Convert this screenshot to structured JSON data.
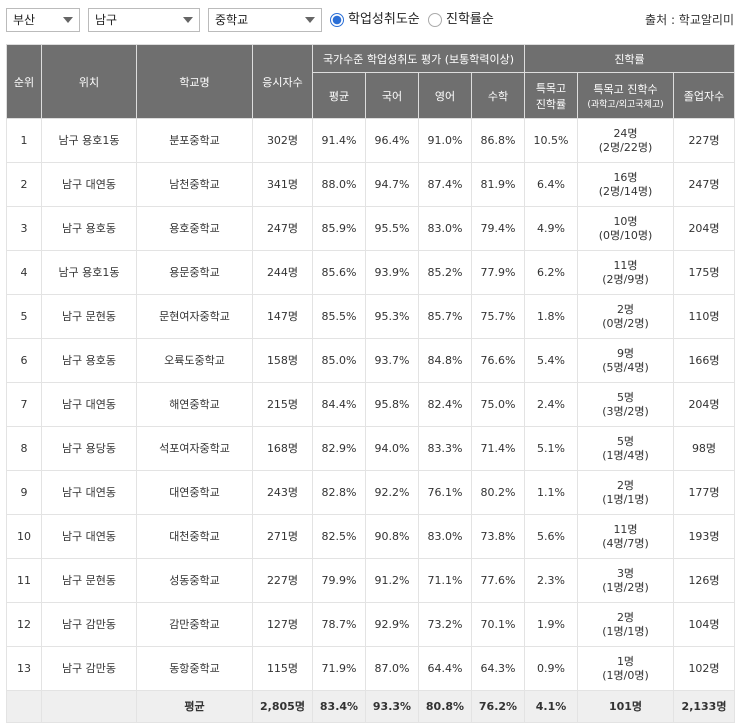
{
  "filters": {
    "region": "부산",
    "district": "남구",
    "school_type": "중학교",
    "sort_options": [
      {
        "label": "학업성취도순",
        "selected": true
      },
      {
        "label": "진학률순",
        "selected": false
      }
    ],
    "source": "출처 : 학교알리미"
  },
  "colors": {
    "header_bg": "#6f6f6f",
    "avg_row_bg": "#efefef",
    "radio_accent": "#2b6fd6"
  },
  "table": {
    "headers": {
      "rank": "순위",
      "location": "위치",
      "school": "학교명",
      "examinees": "응시자수",
      "achievement_group": "국가수준 학업성취도 평가 (보통학력이상)",
      "avg": "평균",
      "korean": "국어",
      "english": "영어",
      "math": "수학",
      "advance_group": "진학률",
      "special_rate_1": "특목고",
      "special_rate_2": "진학률",
      "special_count": "특목고 진학수",
      "special_count_sub": "(과학고/외고국제고)",
      "graduates": "졸업자수"
    },
    "rows": [
      {
        "rank": "1",
        "location": "남구 용호1동",
        "school": "분포중학교",
        "examinees": "302명",
        "avg": "91.4%",
        "korean": "96.4%",
        "english": "91.0%",
        "math": "86.8%",
        "special_rate": "10.5%",
        "special_count": "24명",
        "special_detail": "(2명/22명)",
        "graduates": "227명"
      },
      {
        "rank": "2",
        "location": "남구 대연동",
        "school": "남천중학교",
        "examinees": "341명",
        "avg": "88.0%",
        "korean": "94.7%",
        "english": "87.4%",
        "math": "81.9%",
        "special_rate": "6.4%",
        "special_count": "16명",
        "special_detail": "(2명/14명)",
        "graduates": "247명"
      },
      {
        "rank": "3",
        "location": "남구 용호동",
        "school": "용호중학교",
        "examinees": "247명",
        "avg": "85.9%",
        "korean": "95.5%",
        "english": "83.0%",
        "math": "79.4%",
        "special_rate": "4.9%",
        "special_count": "10명",
        "special_detail": "(0명/10명)",
        "graduates": "204명"
      },
      {
        "rank": "4",
        "location": "남구 용호1동",
        "school": "용문중학교",
        "examinees": "244명",
        "avg": "85.6%",
        "korean": "93.9%",
        "english": "85.2%",
        "math": "77.9%",
        "special_rate": "6.2%",
        "special_count": "11명",
        "special_detail": "(2명/9명)",
        "graduates": "175명"
      },
      {
        "rank": "5",
        "location": "남구 문현동",
        "school": "문현여자중학교",
        "examinees": "147명",
        "avg": "85.5%",
        "korean": "95.3%",
        "english": "85.7%",
        "math": "75.7%",
        "special_rate": "1.8%",
        "special_count": "2명",
        "special_detail": "(0명/2명)",
        "graduates": "110명"
      },
      {
        "rank": "6",
        "location": "남구 용호동",
        "school": "오륙도중학교",
        "examinees": "158명",
        "avg": "85.0%",
        "korean": "93.7%",
        "english": "84.8%",
        "math": "76.6%",
        "special_rate": "5.4%",
        "special_count": "9명",
        "special_detail": "(5명/4명)",
        "graduates": "166명"
      },
      {
        "rank": "7",
        "location": "남구 대연동",
        "school": "해연중학교",
        "examinees": "215명",
        "avg": "84.4%",
        "korean": "95.8%",
        "english": "82.4%",
        "math": "75.0%",
        "special_rate": "2.4%",
        "special_count": "5명",
        "special_detail": "(3명/2명)",
        "graduates": "204명"
      },
      {
        "rank": "8",
        "location": "남구 용당동",
        "school": "석포여자중학교",
        "examinees": "168명",
        "avg": "82.9%",
        "korean": "94.0%",
        "english": "83.3%",
        "math": "71.4%",
        "special_rate": "5.1%",
        "special_count": "5명",
        "special_detail": "(1명/4명)",
        "graduates": "98명"
      },
      {
        "rank": "9",
        "location": "남구 대연동",
        "school": "대연중학교",
        "examinees": "243명",
        "avg": "82.8%",
        "korean": "92.2%",
        "english": "76.1%",
        "math": "80.2%",
        "special_rate": "1.1%",
        "special_count": "2명",
        "special_detail": "(1명/1명)",
        "graduates": "177명"
      },
      {
        "rank": "10",
        "location": "남구 대연동",
        "school": "대천중학교",
        "examinees": "271명",
        "avg": "82.5%",
        "korean": "90.8%",
        "english": "83.0%",
        "math": "73.8%",
        "special_rate": "5.6%",
        "special_count": "11명",
        "special_detail": "(4명/7명)",
        "graduates": "193명"
      },
      {
        "rank": "11",
        "location": "남구 문현동",
        "school": "성동중학교",
        "examinees": "227명",
        "avg": "79.9%",
        "korean": "91.2%",
        "english": "71.1%",
        "math": "77.6%",
        "special_rate": "2.3%",
        "special_count": "3명",
        "special_detail": "(1명/2명)",
        "graduates": "126명"
      },
      {
        "rank": "12",
        "location": "남구 감만동",
        "school": "감만중학교",
        "examinees": "127명",
        "avg": "78.7%",
        "korean": "92.9%",
        "english": "73.2%",
        "math": "70.1%",
        "special_rate": "1.9%",
        "special_count": "2명",
        "special_detail": "(1명/1명)",
        "graduates": "104명"
      },
      {
        "rank": "13",
        "location": "남구 감만동",
        "school": "동항중학교",
        "examinees": "115명",
        "avg": "71.9%",
        "korean": "87.0%",
        "english": "64.4%",
        "math": "64.3%",
        "special_rate": "0.9%",
        "special_count": "1명",
        "special_detail": "(1명/0명)",
        "graduates": "102명"
      }
    ],
    "average_row": {
      "label": "평균",
      "examinees": "2,805명",
      "avg": "83.4%",
      "korean": "93.3%",
      "english": "80.8%",
      "math": "76.2%",
      "special_rate": "4.1%",
      "special_count": "101명",
      "graduates": "2,133명"
    }
  }
}
